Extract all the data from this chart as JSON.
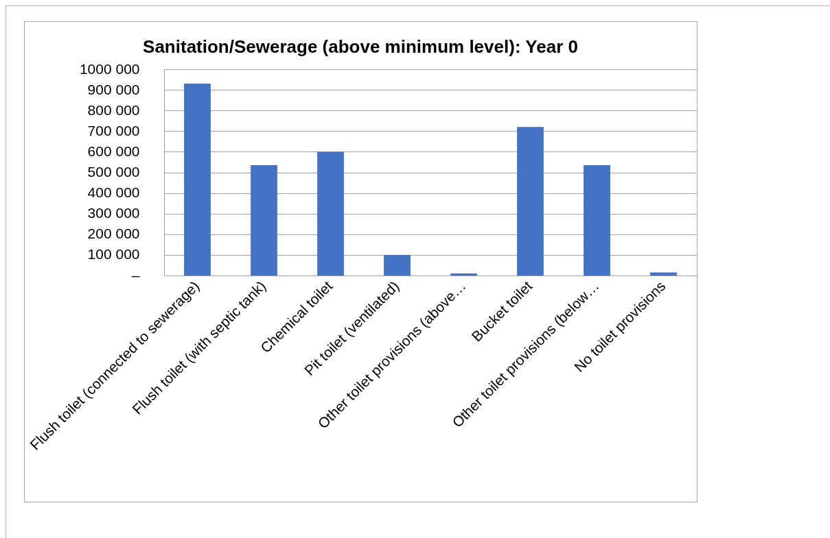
{
  "chart_data": {
    "type": "bar",
    "title": "Sanitation/Sewerage (above minimum level): Year 0",
    "categories": [
      "Flush toilet (connected to sewerage)",
      "Flush toilet (with septic tank)",
      "Chemical toilet",
      "Pit toilet (ventilated)",
      "Other toilet provisions (above…",
      "Bucket toilet",
      "Other toilet provisions (below…",
      "No toilet provisions"
    ],
    "values": [
      930000,
      535000,
      600000,
      100000,
      10000,
      720000,
      535000,
      15000
    ],
    "color": "#4472c4",
    "ylim": [
      0,
      1000000
    ],
    "yticks": [
      {
        "value": 0,
        "label": "–"
      },
      {
        "value": 100000,
        "label": "100 000"
      },
      {
        "value": 200000,
        "label": "200 000"
      },
      {
        "value": 300000,
        "label": "300 000"
      },
      {
        "value": 400000,
        "label": "400 000"
      },
      {
        "value": 500000,
        "label": "500 000"
      },
      {
        "value": 600000,
        "label": "600 000"
      },
      {
        "value": 700000,
        "label": "700 000"
      },
      {
        "value": 800000,
        "label": "800 000"
      },
      {
        "value": 900000,
        "label": "900 000"
      },
      {
        "value": 1000000,
        "label": "1000 000"
      }
    ],
    "grid": "y"
  }
}
